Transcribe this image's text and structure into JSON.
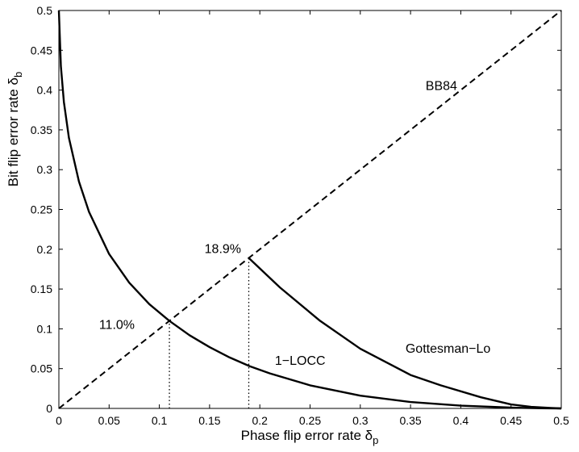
{
  "chart_data": {
    "type": "line",
    "title": "",
    "xlabel": "Phase flip error rate",
    "xlabel_symbol": "δ",
    "xlabel_sub": "p",
    "ylabel": "Bit flip error rate",
    "ylabel_symbol": "δ",
    "ylabel_sub": "b",
    "xlim": [
      0,
      0.5
    ],
    "ylim": [
      0,
      0.5
    ],
    "grid": false,
    "x_ticks": [
      "0",
      "0.05",
      "0.1",
      "0.15",
      "0.2",
      "0.25",
      "0.3",
      "0.35",
      "0.4",
      "0.45",
      "0.5"
    ],
    "y_ticks": [
      "0",
      "0.05",
      "0.1",
      "0.15",
      "0.2",
      "0.25",
      "0.3",
      "0.35",
      "0.4",
      "0.45",
      "0.5"
    ],
    "series": [
      {
        "name": "BB84",
        "style": "dashed",
        "x": [
          0,
          0.5
        ],
        "y": [
          0,
          0.5
        ]
      },
      {
        "name": "1-LOCC",
        "style": "solid",
        "x": [
          0.0,
          0.002,
          0.005,
          0.01,
          0.02,
          0.03,
          0.05,
          0.07,
          0.09,
          0.11,
          0.13,
          0.15,
          0.17,
          0.19,
          0.21,
          0.25,
          0.3,
          0.35,
          0.4,
          0.45,
          0.48,
          0.5
        ],
        "y": [
          0.5,
          0.43,
          0.385,
          0.34,
          0.285,
          0.247,
          0.194,
          0.158,
          0.131,
          0.11,
          0.092,
          0.077,
          0.064,
          0.053,
          0.044,
          0.029,
          0.016,
          0.008,
          0.0035,
          0.001,
          0.0002,
          0.0
        ]
      },
      {
        "name": "Gottesman-Lo",
        "style": "solid",
        "x": [
          0.189,
          0.22,
          0.26,
          0.3,
          0.35,
          0.38,
          0.42,
          0.45,
          0.47,
          0.49,
          0.5
        ],
        "y": [
          0.189,
          0.152,
          0.11,
          0.075,
          0.042,
          0.029,
          0.014,
          0.005,
          0.002,
          0.0005,
          0.0
        ]
      }
    ],
    "reference_lines": [
      {
        "style": "dotted",
        "x": [
          0.11,
          0.11
        ],
        "y": [
          0,
          0.11
        ]
      },
      {
        "style": "dotted",
        "x": [
          0.189,
          0.189
        ],
        "y": [
          0,
          0.189
        ]
      }
    ],
    "annotations": [
      {
        "text": "BB84",
        "x": 0.365,
        "y": 0.4
      },
      {
        "text": "18.9%",
        "x": 0.145,
        "y": 0.195
      },
      {
        "text": "11.0%",
        "x": 0.04,
        "y": 0.1
      },
      {
        "text": "1−LOCC",
        "x": 0.215,
        "y": 0.055
      },
      {
        "text": "Gottesman−Lo",
        "x": 0.345,
        "y": 0.07
      }
    ]
  }
}
